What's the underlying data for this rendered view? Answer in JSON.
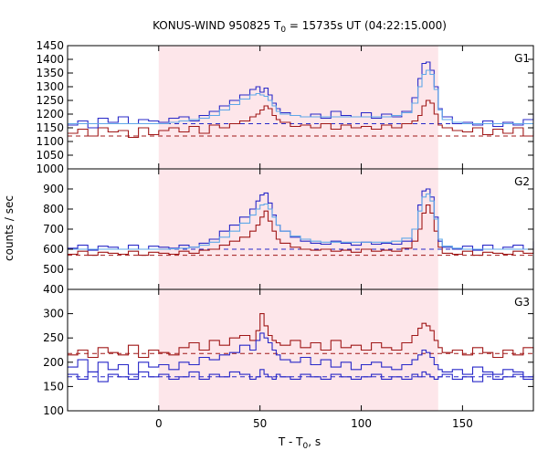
{
  "title": {
    "prefix": "KONUS-WIND 950825 T",
    "subscript": "0",
    "suffix": " = 15735s UT (04:22:15.000)"
  },
  "xlabel": {
    "prefix": "T - T",
    "subscript": "0",
    "suffix": ", s"
  },
  "ylabel": "counts / sec",
  "colors": {
    "shade": "#fde6ea",
    "red_series": "#a01818",
    "blue_series": "#2828c8",
    "lightblue_series": "#5fa8e8"
  },
  "chart_data": [
    {
      "type": "line",
      "panel": "G1",
      "xlim": [
        -45,
        185
      ],
      "ylim": [
        1000,
        1450
      ],
      "xticks": [
        0,
        50,
        100,
        150
      ],
      "xtick_labels": [
        "0",
        "50",
        "100",
        "150"
      ],
      "yticks": [
        1000,
        1050,
        1100,
        1150,
        1200,
        1250,
        1300,
        1350,
        1400,
        1450
      ],
      "ytick_labels": [
        "1000",
        "1050",
        "1100",
        "1150",
        "1200",
        "1250",
        "1300",
        "1350",
        "1400",
        "1450"
      ],
      "shaded_interval": [
        0,
        138
      ],
      "background_levels": [
        1165,
        1120
      ],
      "x": [
        -45,
        -40,
        -35,
        -30,
        -25,
        -20,
        -15,
        -10,
        -5,
        0,
        5,
        10,
        15,
        20,
        25,
        30,
        35,
        40,
        45,
        48,
        50,
        52,
        54,
        56,
        58,
        60,
        65,
        70,
        75,
        80,
        85,
        90,
        95,
        100,
        105,
        110,
        115,
        120,
        125,
        128,
        130,
        132,
        134,
        136,
        138,
        140,
        145,
        150,
        155,
        160,
        165,
        170,
        175,
        180,
        185
      ],
      "series": [
        {
          "values": [
            1130,
            1145,
            1120,
            1150,
            1135,
            1140,
            1115,
            1150,
            1125,
            1140,
            1150,
            1135,
            1155,
            1130,
            1160,
            1150,
            1165,
            1175,
            1190,
            1200,
            1215,
            1230,
            1220,
            1195,
            1180,
            1170,
            1155,
            1160,
            1150,
            1165,
            1145,
            1160,
            1150,
            1155,
            1145,
            1160,
            1150,
            1165,
            1175,
            1195,
            1230,
            1250,
            1240,
            1200,
            1160,
            1150,
            1140,
            1135,
            1150,
            1125,
            1145,
            1130,
            1150,
            1120,
            1140
          ]
        },
        {
          "values": [
            1160,
            1175,
            1150,
            1185,
            1170,
            1190,
            1165,
            1180,
            1175,
            1170,
            1185,
            1190,
            1175,
            1195,
            1210,
            1230,
            1250,
            1270,
            1290,
            1300,
            1280,
            1295,
            1270,
            1240,
            1220,
            1205,
            1195,
            1190,
            1200,
            1185,
            1210,
            1195,
            1190,
            1205,
            1185,
            1200,
            1190,
            1210,
            1260,
            1330,
            1385,
            1390,
            1360,
            1300,
            1220,
            1190,
            1165,
            1170,
            1160,
            1175,
            1155,
            1170,
            1160,
            1180,
            1200
          ]
        },
        {
          "values": [
            1165,
            1165,
            1165,
            1165,
            1165,
            1165,
            1165,
            1165,
            1165,
            1165,
            1170,
            1175,
            1180,
            1185,
            1195,
            1215,
            1235,
            1255,
            1270,
            1275,
            1270,
            1265,
            1250,
            1230,
            1210,
            1200,
            1195,
            1190,
            1190,
            1190,
            1190,
            1190,
            1190,
            1190,
            1190,
            1190,
            1195,
            1205,
            1240,
            1300,
            1345,
            1360,
            1345,
            1290,
            1215,
            1180,
            1170,
            1165,
            1165,
            1165,
            1165,
            1165,
            1165,
            1165,
            1165
          ]
        }
      ]
    },
    {
      "type": "line",
      "panel": "G2",
      "xlim": [
        -45,
        185
      ],
      "ylim": [
        400,
        1000
      ],
      "xticks": [
        0,
        50,
        100,
        150
      ],
      "xtick_labels": [
        "0",
        "50",
        "100",
        "150"
      ],
      "yticks": [
        400,
        500,
        600,
        700,
        800,
        900
      ],
      "ytick_labels": [
        "400",
        "500",
        "600",
        "700",
        "800",
        "900"
      ],
      "shaded_interval": [
        0,
        138
      ],
      "background_levels": [
        600,
        570
      ],
      "x": [
        -45,
        -40,
        -35,
        -30,
        -25,
        -20,
        -15,
        -10,
        -5,
        0,
        5,
        10,
        15,
        20,
        25,
        30,
        35,
        40,
        45,
        48,
        50,
        52,
        54,
        56,
        58,
        60,
        65,
        70,
        75,
        80,
        85,
        90,
        95,
        100,
        105,
        110,
        115,
        120,
        125,
        128,
        130,
        132,
        134,
        136,
        138,
        140,
        145,
        150,
        155,
        160,
        165,
        170,
        175,
        180,
        185
      ],
      "series": [
        {
          "values": [
            575,
            590,
            570,
            585,
            580,
            575,
            590,
            570,
            585,
            580,
            575,
            590,
            580,
            595,
            600,
            620,
            640,
            660,
            690,
            720,
            760,
            790,
            740,
            690,
            650,
            630,
            610,
            600,
            595,
            600,
            590,
            595,
            585,
            600,
            590,
            595,
            590,
            605,
            640,
            700,
            780,
            820,
            780,
            690,
            610,
            580,
            575,
            590,
            570,
            585,
            580,
            575,
            590,
            580,
            600
          ]
        },
        {
          "values": [
            605,
            620,
            595,
            615,
            610,
            600,
            620,
            600,
            615,
            610,
            605,
            620,
            610,
            630,
            650,
            690,
            720,
            760,
            800,
            840,
            870,
            880,
            830,
            770,
            720,
            690,
            660,
            640,
            630,
            625,
            640,
            630,
            620,
            635,
            625,
            630,
            625,
            640,
            700,
            820,
            890,
            900,
            860,
            760,
            640,
            610,
            600,
            615,
            595,
            620,
            600,
            610,
            620,
            600,
            640
          ]
        },
        {
          "values": [
            600,
            600,
            600,
            600,
            600,
            600,
            600,
            600,
            600,
            600,
            602,
            605,
            610,
            620,
            635,
            660,
            690,
            730,
            770,
            800,
            820,
            825,
            800,
            760,
            720,
            690,
            665,
            650,
            640,
            635,
            635,
            635,
            635,
            635,
            635,
            635,
            640,
            655,
            700,
            790,
            860,
            875,
            840,
            750,
            650,
            615,
            605,
            600,
            600,
            600,
            600,
            600,
            600,
            600,
            600
          ]
        }
      ]
    },
    {
      "type": "line",
      "panel": "G3",
      "xlim": [
        -45,
        185
      ],
      "ylim": [
        100,
        350
      ],
      "xticks": [
        0,
        50,
        100,
        150
      ],
      "xtick_labels": [
        "0",
        "50",
        "100",
        "150"
      ],
      "yticks": [
        100,
        150,
        200,
        250,
        300
      ],
      "ytick_labels": [
        "100",
        "150",
        "200",
        "250",
        "300"
      ],
      "shaded_interval": [
        0,
        138
      ],
      "background_levels": [
        218,
        170
      ],
      "x": [
        -45,
        -40,
        -35,
        -30,
        -25,
        -20,
        -15,
        -10,
        -5,
        0,
        5,
        10,
        15,
        20,
        25,
        30,
        35,
        40,
        45,
        48,
        50,
        52,
        54,
        56,
        58,
        60,
        65,
        70,
        75,
        80,
        85,
        90,
        95,
        100,
        105,
        110,
        115,
        120,
        125,
        128,
        130,
        132,
        134,
        136,
        138,
        140,
        145,
        150,
        155,
        160,
        165,
        170,
        175,
        180,
        185
      ],
      "series": [
        {
          "values": [
            215,
            225,
            210,
            230,
            220,
            215,
            235,
            210,
            225,
            220,
            215,
            230,
            240,
            225,
            245,
            235,
            250,
            255,
            245,
            265,
            300,
            275,
            255,
            245,
            240,
            235,
            245,
            230,
            240,
            225,
            245,
            230,
            235,
            225,
            240,
            230,
            225,
            240,
            255,
            270,
            280,
            275,
            265,
            245,
            230,
            220,
            225,
            215,
            230,
            220,
            210,
            225,
            215,
            230,
            220
          ]
        },
        {
          "values": [
            190,
            205,
            180,
            200,
            185,
            195,
            175,
            200,
            190,
            195,
            185,
            200,
            195,
            210,
            205,
            215,
            220,
            235,
            225,
            245,
            260,
            250,
            240,
            225,
            215,
            205,
            200,
            210,
            195,
            205,
            190,
            200,
            185,
            195,
            200,
            190,
            185,
            195,
            205,
            215,
            225,
            220,
            210,
            195,
            185,
            180,
            185,
            175,
            190,
            180,
            175,
            185,
            180,
            170,
            175
          ]
        },
        {
          "values": [
            175,
            165,
            180,
            160,
            175,
            170,
            165,
            180,
            170,
            175,
            165,
            170,
            180,
            165,
            175,
            170,
            180,
            175,
            165,
            170,
            185,
            175,
            170,
            165,
            175,
            170,
            165,
            175,
            170,
            165,
            175,
            170,
            165,
            170,
            175,
            165,
            170,
            165,
            175,
            170,
            180,
            175,
            170,
            165,
            170,
            175,
            165,
            170,
            160,
            175,
            165,
            170,
            175,
            165,
            175
          ]
        }
      ]
    }
  ]
}
